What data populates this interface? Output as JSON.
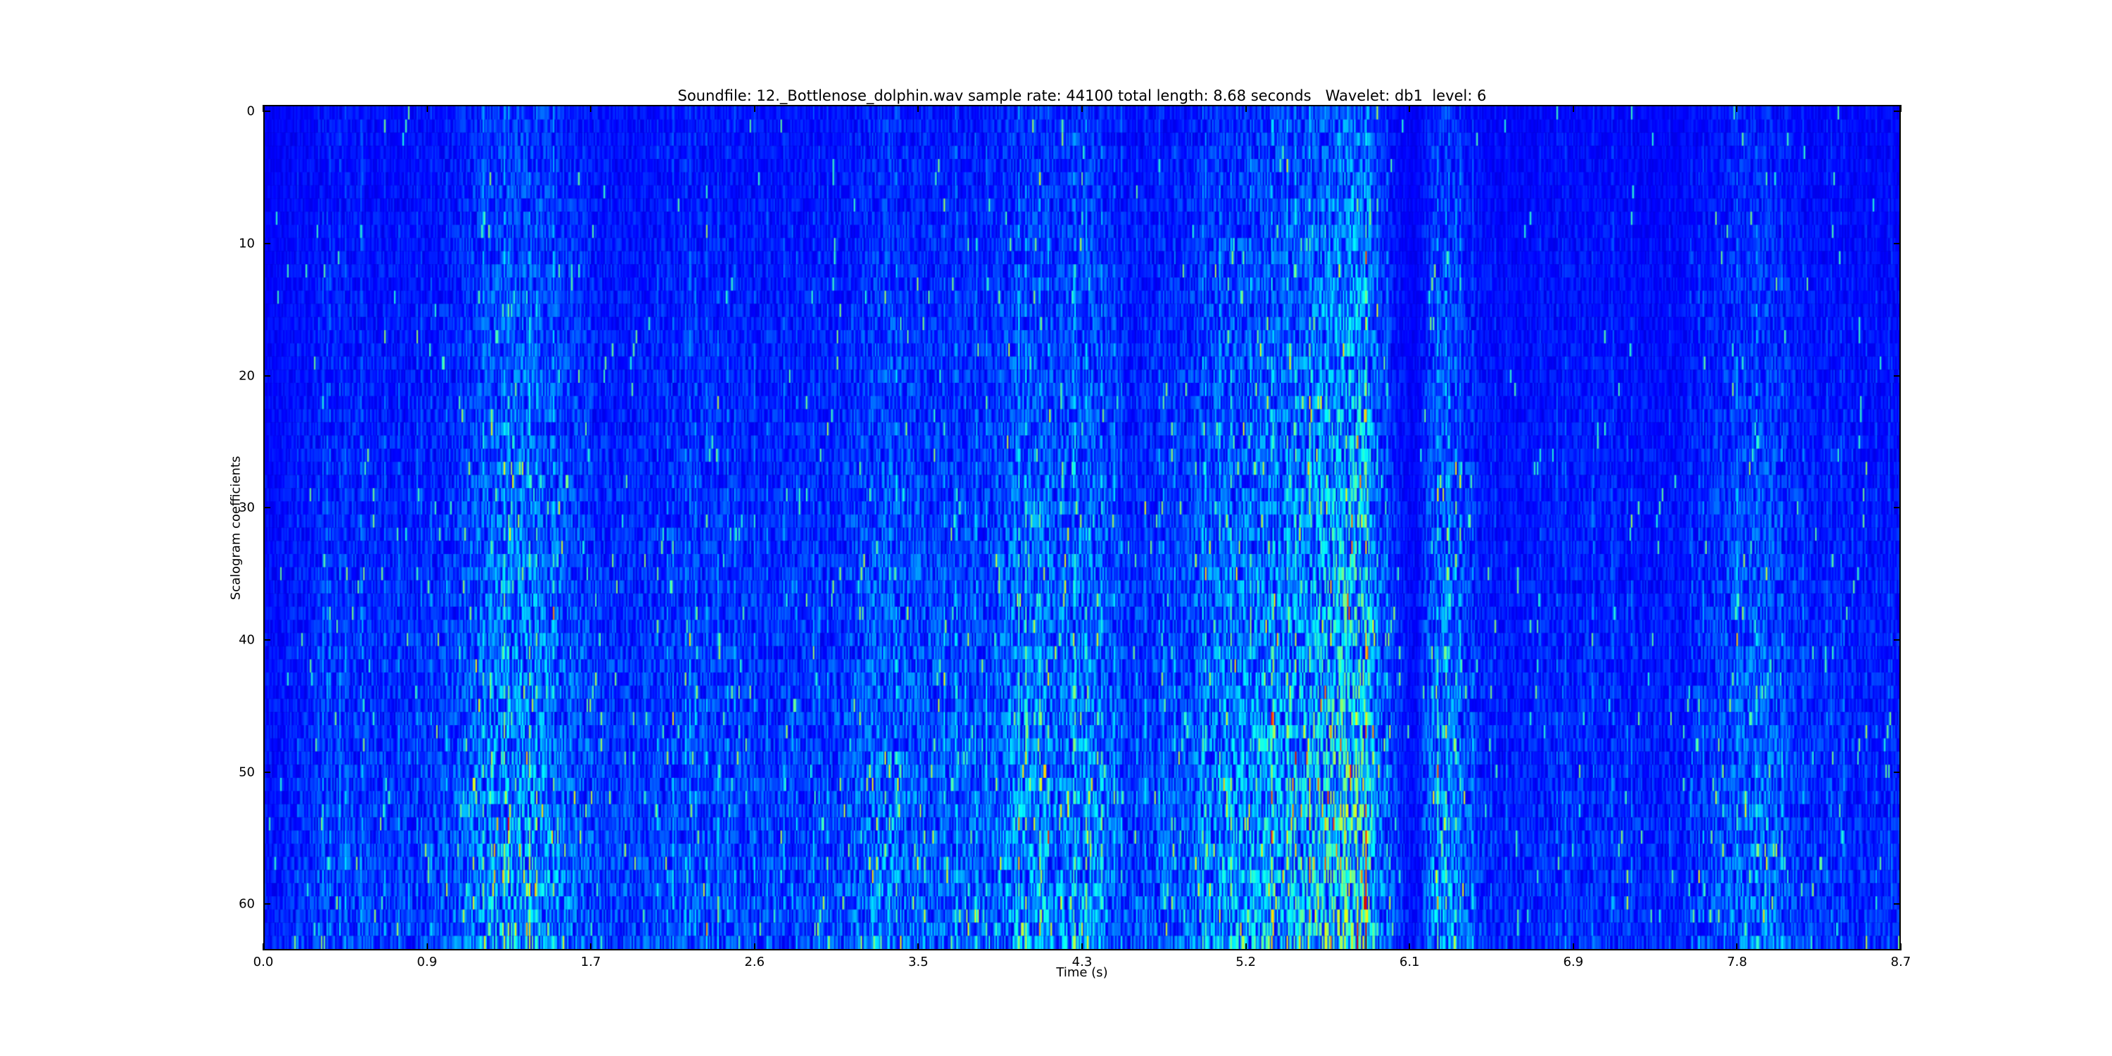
{
  "chart_data": {
    "type": "heatmap",
    "title": "Soundfile: 12._Bottlenose_dolphin.wav sample rate: 44100 total length: 8.68 seconds   Wavelet: db1  level: 6",
    "xlabel": "Time (s)",
    "ylabel": "Scalogram coefficients",
    "xlim": [
      0,
      8.68
    ],
    "ylim": [
      63.5,
      -0.5
    ],
    "x_ticks": [
      "0.0",
      "0.9",
      "1.7",
      "2.6",
      "3.5",
      "4.3",
      "5.2",
      "6.1",
      "6.9",
      "7.8",
      "8.7"
    ],
    "y_ticks": [
      "0",
      "10",
      "20",
      "30",
      "40",
      "50",
      "60"
    ],
    "colormap": "jet",
    "rows": 64,
    "grid": false,
    "activity_profile": {
      "time_s": [
        0,
        0.4,
        0.8,
        1.0,
        1.2,
        1.4,
        1.6,
        1.8,
        2.0,
        2.3,
        2.6,
        3.0,
        3.3,
        3.5,
        3.8,
        4.0,
        4.2,
        4.4,
        4.6,
        4.9,
        5.1,
        5.3,
        5.5,
        5.7,
        5.85,
        5.9,
        6.1,
        6.2,
        6.3,
        6.5,
        7.0,
        7.5,
        7.8,
        7.95,
        8.2,
        8.68
      ],
      "relative_intensity": [
        0.15,
        0.3,
        0.25,
        0.35,
        0.55,
        0.6,
        0.45,
        0.3,
        0.3,
        0.35,
        0.3,
        0.3,
        0.5,
        0.4,
        0.35,
        0.55,
        0.5,
        0.55,
        0.3,
        0.4,
        0.55,
        0.6,
        0.65,
        0.9,
        0.95,
        0.5,
        0.1,
        0.5,
        0.5,
        0.2,
        0.25,
        0.2,
        0.4,
        0.45,
        0.25,
        0.2
      ]
    }
  }
}
